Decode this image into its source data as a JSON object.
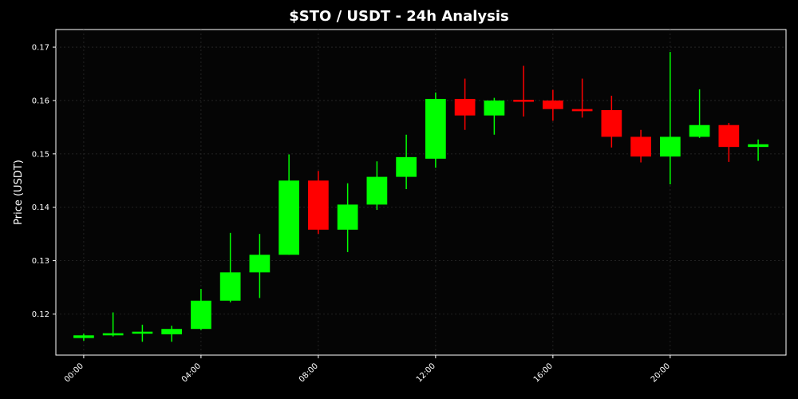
{
  "chart_data": {
    "type": "candlestick",
    "title": "$STO / USDT - 24h Analysis",
    "xlabel": "",
    "ylabel": "Price (USDT)",
    "ylim": [
      0.1123,
      0.1733
    ],
    "yticks": [
      0.12,
      0.13,
      0.14,
      0.15,
      0.16,
      0.17
    ],
    "ytick_labels": [
      "0.12",
      "0.13",
      "0.14",
      "0.15",
      "0.16",
      "0.17"
    ],
    "xticks": [
      0,
      4,
      8,
      12,
      16,
      20
    ],
    "xtick_labels": [
      "00:00",
      "04:00",
      "08:00",
      "12:00",
      "16:00",
      "20:00"
    ],
    "xlim": [
      -0.95,
      23.95
    ],
    "grid": true,
    "colors": {
      "up": "#00ff00",
      "down": "#ff0000",
      "background": "#000000",
      "plot_background": "#050505",
      "grid": "#2a2a2a",
      "text": "#ffffff"
    },
    "candles": [
      {
        "x": 0,
        "open": 0.1155,
        "high": 0.1163,
        "low": 0.115,
        "close": 0.116
      },
      {
        "x": 1,
        "open": 0.116,
        "high": 0.1203,
        "low": 0.1158,
        "close": 0.1164
      },
      {
        "x": 2,
        "open": 0.1164,
        "high": 0.118,
        "low": 0.1148,
        "close": 0.1166
      },
      {
        "x": 3,
        "open": 0.1162,
        "high": 0.1178,
        "low": 0.1148,
        "close": 0.1172
      },
      {
        "x": 4,
        "open": 0.1172,
        "high": 0.1247,
        "low": 0.117,
        "close": 0.1225
      },
      {
        "x": 5,
        "open": 0.1225,
        "high": 0.1352,
        "low": 0.1222,
        "close": 0.1278
      },
      {
        "x": 6,
        "open": 0.1278,
        "high": 0.135,
        "low": 0.123,
        "close": 0.1311
      },
      {
        "x": 7,
        "open": 0.1311,
        "high": 0.1499,
        "low": 0.1311,
        "close": 0.145
      },
      {
        "x": 8,
        "open": 0.145,
        "high": 0.1468,
        "low": 0.135,
        "close": 0.1358
      },
      {
        "x": 9,
        "open": 0.1358,
        "high": 0.1445,
        "low": 0.1316,
        "close": 0.1405
      },
      {
        "x": 10,
        "open": 0.1405,
        "high": 0.1486,
        "low": 0.1395,
        "close": 0.1457
      },
      {
        "x": 11,
        "open": 0.1457,
        "high": 0.1536,
        "low": 0.1434,
        "close": 0.1494
      },
      {
        "x": 12,
        "open": 0.1491,
        "high": 0.1615,
        "low": 0.1474,
        "close": 0.1603
      },
      {
        "x": 13,
        "open": 0.1603,
        "high": 0.1641,
        "low": 0.1545,
        "close": 0.1572
      },
      {
        "x": 14,
        "open": 0.1572,
        "high": 0.1605,
        "low": 0.1536,
        "close": 0.16
      },
      {
        "x": 15,
        "open": 0.1601,
        "high": 0.1665,
        "low": 0.157,
        "close": 0.1598
      },
      {
        "x": 16,
        "open": 0.16,
        "high": 0.162,
        "low": 0.1562,
        "close": 0.1584
      },
      {
        "x": 17,
        "open": 0.1584,
        "high": 0.1641,
        "low": 0.1568,
        "close": 0.158
      },
      {
        "x": 18,
        "open": 0.1582,
        "high": 0.1609,
        "low": 0.1512,
        "close": 0.1532
      },
      {
        "x": 19,
        "open": 0.1532,
        "high": 0.1545,
        "low": 0.1484,
        "close": 0.1495
      },
      {
        "x": 20,
        "open": 0.1495,
        "high": 0.1691,
        "low": 0.1443,
        "close": 0.1532
      },
      {
        "x": 21,
        "open": 0.1532,
        "high": 0.1621,
        "low": 0.153,
        "close": 0.1554
      },
      {
        "x": 22,
        "open": 0.1554,
        "high": 0.1558,
        "low": 0.1485,
        "close": 0.1513
      },
      {
        "x": 23,
        "open": 0.1513,
        "high": 0.1527,
        "low": 0.1487,
        "close": 0.1518
      }
    ]
  }
}
